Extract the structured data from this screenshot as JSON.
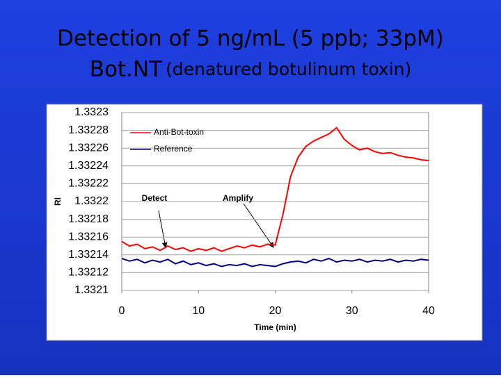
{
  "title": "Detection of 5 ng/mL  (5 ppb; 33pM)",
  "subtitle_parts": [
    "Bot.NT",
    "(denatured botulinum toxin)"
  ],
  "chart_data": {
    "type": "line",
    "x_label": "Time (min)",
    "y_label": "RI",
    "xlim": [
      0,
      40
    ],
    "xticks": [
      0,
      10,
      20,
      30,
      40
    ],
    "ylim": [
      1.3321,
      1.3323
    ],
    "yticks": [
      1.3321,
      1.33212,
      1.33214,
      1.33216,
      1.33218,
      1.3322,
      1.33222,
      1.33224,
      1.33226,
      1.33228,
      1.3323
    ],
    "grid": true,
    "legend": "upper left",
    "annotations": [
      "Detect",
      "Amplify"
    ],
    "x": [
      0,
      1,
      2,
      3,
      4,
      5,
      6,
      7,
      8,
      9,
      10,
      11,
      12,
      13,
      14,
      15,
      16,
      17,
      18,
      19,
      20,
      21,
      22,
      23,
      24,
      25,
      26,
      27,
      28,
      29,
      30,
      31,
      32,
      33,
      34,
      35,
      36,
      37,
      38,
      39,
      40
    ],
    "series": [
      {
        "name": "Anti-Bot-toxin",
        "color": "#ff0000",
        "values": [
          1.332155,
          1.33215,
          1.332152,
          1.332147,
          1.332149,
          1.332145,
          1.33215,
          1.332146,
          1.332148,
          1.332144,
          1.332147,
          1.332145,
          1.332148,
          1.332144,
          1.332147,
          1.33215,
          1.332148,
          1.332151,
          1.332149,
          1.332152,
          1.332151,
          1.332185,
          1.332228,
          1.33225,
          1.332262,
          1.332268,
          1.332272,
          1.332276,
          1.332283,
          1.33227,
          1.332263,
          1.332258,
          1.33226,
          1.332256,
          1.332254,
          1.332255,
          1.332252,
          1.33225,
          1.332249,
          1.332247,
          1.332246
        ]
      },
      {
        "name": "Reference",
        "color": "#000080",
        "values": [
          1.332136,
          1.332133,
          1.332135,
          1.332131,
          1.332134,
          1.332132,
          1.332135,
          1.33213,
          1.332133,
          1.332129,
          1.332131,
          1.332128,
          1.33213,
          1.332127,
          1.332129,
          1.332128,
          1.33213,
          1.332127,
          1.332129,
          1.332128,
          1.332127,
          1.33213,
          1.332132,
          1.332133,
          1.332131,
          1.332135,
          1.332133,
          1.332136,
          1.332132,
          1.332134,
          1.332133,
          1.332135,
          1.332132,
          1.332134,
          1.332133,
          1.332135,
          1.332132,
          1.332134,
          1.332133,
          1.332135,
          1.332134
        ]
      }
    ]
  }
}
